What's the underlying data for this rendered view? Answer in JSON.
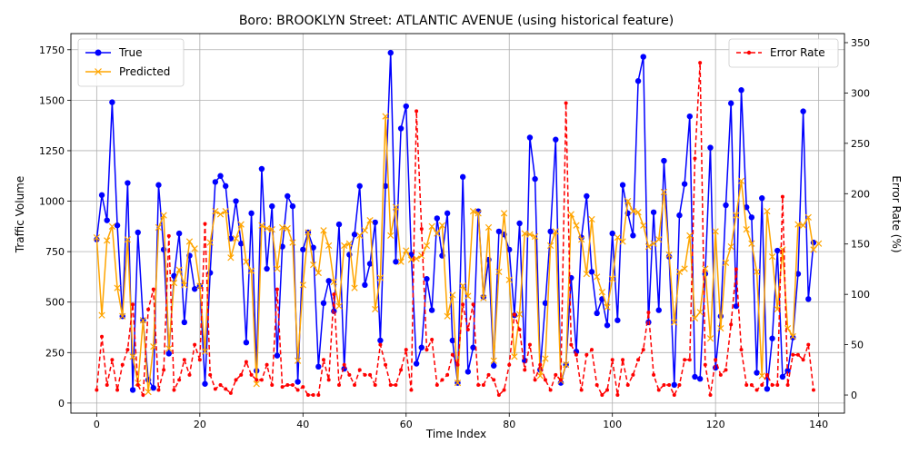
{
  "chart_data": {
    "type": "line",
    "title": "Boro: BROOKLYN Street: ATLANTIC AVENUE (using historical feature)",
    "xlabel": "Time Index",
    "ylabel": "Traffic Volume",
    "y2label": "Error Rate (%)",
    "xlim": [
      -5,
      145
    ],
    "ylim": [
      -50,
      1830
    ],
    "y2lim": [
      -18,
      359
    ],
    "xticks": [
      0,
      20,
      40,
      60,
      80,
      100,
      120,
      140
    ],
    "yticks": [
      0,
      250,
      500,
      750,
      1000,
      1250,
      1500,
      1750
    ],
    "y2ticks": [
      0,
      50,
      100,
      150,
      200,
      250,
      300,
      350
    ],
    "grid": true,
    "legend_left": "top-left",
    "legend_right": "top-right",
    "series": [
      {
        "name": "True",
        "color": "#0000ff",
        "axis": "left",
        "marker": "circle",
        "values": [
          810,
          1030,
          905,
          1490,
          880,
          430,
          1090,
          65,
          845,
          410,
          115,
          75,
          1080,
          760,
          245,
          630,
          840,
          400,
          730,
          565,
          580,
          95,
          645,
          1095,
          1125,
          1075,
          815,
          1000,
          790,
          300,
          940,
          160,
          1160,
          665,
          975,
          235,
          775,
          1025,
          975,
          105,
          760,
          845,
          770,
          180,
          495,
          605,
          455,
          885,
          170,
          735,
          835,
          1075,
          585,
          690,
          895,
          310,
          1075,
          1735,
          700,
          1360,
          1470,
          735,
          195,
          275,
          615,
          460,
          915,
          730,
          940,
          310,
          100,
          1120,
          155,
          275,
          950,
          525,
          710,
          185,
          850,
          835,
          760,
          435,
          890,
          210,
          1315,
          1110,
          165,
          495,
          850,
          1305,
          100,
          190,
          620,
          255,
          820,
          1025,
          650,
          445,
          515,
          385,
          840,
          410,
          1080,
          940,
          830,
          1595,
          1715,
          400,
          945,
          460,
          1200,
          725,
          90,
          930,
          1085,
          1420,
          130,
          120,
          640,
          1265,
          175,
          430,
          980,
          1485,
          480,
          1550,
          970,
          920,
          150,
          1015,
          70,
          320,
          755,
          130,
          160,
          325,
          640,
          1445,
          515,
          795
        ]
      },
      {
        "name": "Predicted",
        "color": "#ffa500",
        "axis": "left",
        "marker": "x",
        "values": [
          820,
          435,
          805,
          875,
          570,
          430,
          810,
          230,
          100,
          410,
          55,
          280,
          870,
          930,
          270,
          595,
          660,
          585,
          800,
          765,
          580,
          255,
          795,
          950,
          935,
          950,
          720,
          815,
          885,
          700,
          655,
          95,
          880,
          865,
          860,
          665,
          870,
          865,
          795,
          210,
          585,
          845,
          685,
          645,
          855,
          780,
          600,
          480,
          780,
          790,
          570,
          830,
          855,
          905,
          465,
          620,
          1420,
          830,
          970,
          700,
          755,
          710,
          715,
          730,
          780,
          875,
          840,
          880,
          430,
          535,
          100,
          580,
          530,
          950,
          940,
          520,
          870,
          210,
          650,
          940,
          610,
          230,
          440,
          840,
          835,
          825,
          135,
          220,
          780,
          850,
          110,
          190,
          935,
          880,
          810,
          640,
          910,
          625,
          550,
          475,
          615,
          820,
          800,
          1000,
          950,
          945,
          880,
          775,
          790,
          810,
          1045,
          735,
          400,
          650,
          665,
          830,
          420,
          450,
          665,
          320,
          850,
          370,
          695,
          775,
          930,
          1100,
          860,
          790,
          650,
          135,
          950,
          725,
          465,
          760,
          370,
          330,
          885,
          880,
          920,
          760,
          790
        ]
      },
      {
        "name": "Error Rate",
        "color": "#ff0000",
        "axis": "right",
        "marker": "dot",
        "values": [
          5,
          58,
          10,
          35,
          5,
          30,
          45,
          90,
          10,
          0,
          85,
          105,
          5,
          25,
          158,
          5,
          15,
          35,
          20,
          50,
          35,
          170,
          20,
          6,
          10,
          6,
          2,
          15,
          20,
          33,
          20,
          15,
          15,
          30,
          10,
          105,
          8,
          10,
          10,
          5,
          8,
          0,
          0,
          0,
          35,
          15,
          100,
          10,
          30,
          20,
          10,
          25,
          20,
          20,
          10,
          50,
          30,
          10,
          10,
          25,
          45,
          5,
          282,
          165,
          45,
          55,
          10,
          15,
          20,
          40,
          30,
          90,
          65,
          90,
          10,
          10,
          20,
          15,
          0,
          5,
          30,
          80,
          65,
          25,
          50,
          15,
          30,
          15,
          5,
          20,
          15,
          290,
          50,
          40,
          5,
          40,
          45,
          10,
          0,
          5,
          35,
          0,
          35,
          10,
          20,
          35,
          45,
          82,
          20,
          5,
          10,
          10,
          0,
          10,
          35,
          35,
          235,
          330,
          30,
          0,
          35,
          20,
          25,
          70,
          125,
          45,
          10,
          10,
          5,
          10,
          20,
          10,
          10,
          197,
          10,
          40,
          40,
          35,
          50,
          5
        ]
      }
    ]
  }
}
